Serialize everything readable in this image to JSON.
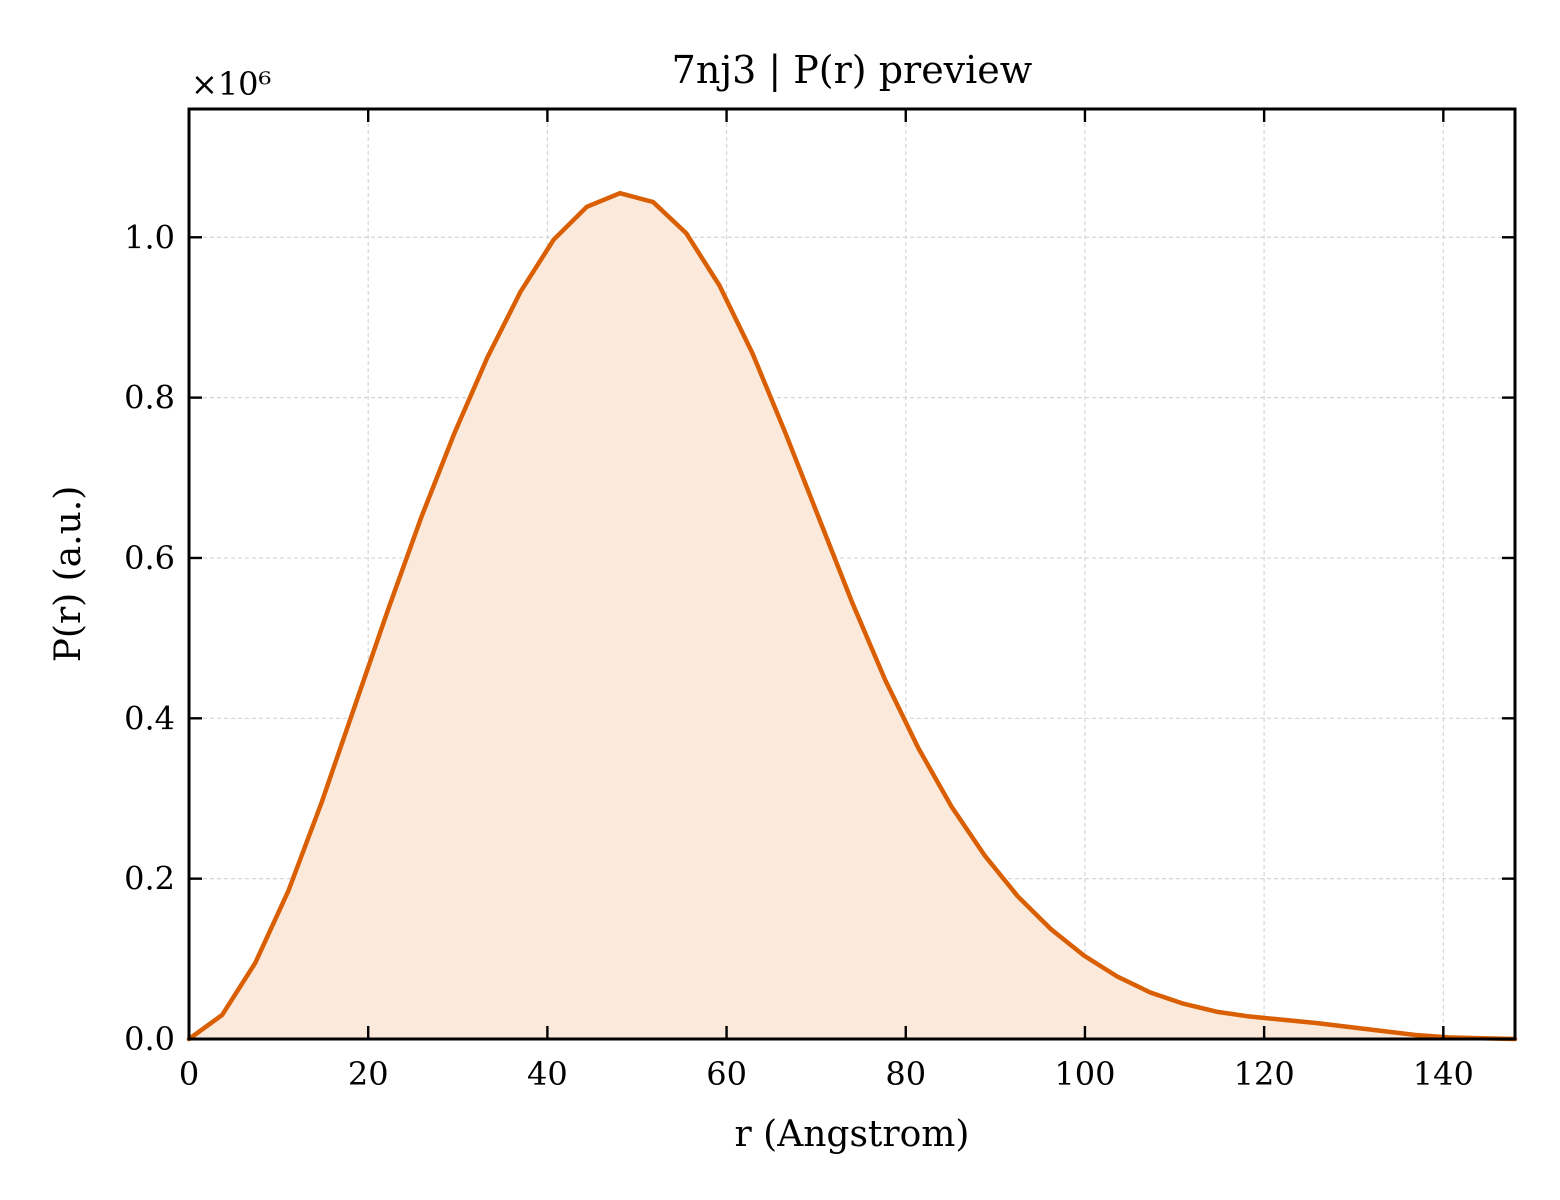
{
  "chart_data": {
    "type": "area",
    "title": "7nj3 | P(r) preview",
    "xlabel": "r (Angstrom)",
    "ylabel": "P(r) (a.u.)",
    "y_multiplier_label": "×10⁶",
    "xlim": [
      0,
      148
    ],
    "ylim": [
      0,
      1.16
    ],
    "xticks": [
      0,
      20,
      40,
      60,
      80,
      100,
      120,
      140
    ],
    "xtick_labels": [
      "0",
      "20",
      "40",
      "60",
      "80",
      "100",
      "120",
      "140"
    ],
    "yticks": [
      0.0,
      0.2,
      0.4,
      0.6,
      0.8,
      1.0
    ],
    "ytick_labels": [
      "0.0",
      "0.2",
      "0.4",
      "0.6",
      "0.8",
      "1.0"
    ],
    "grid": true,
    "series": [
      {
        "color": "#d95f02",
        "fill_color": "#fbe9dc",
        "x": [
          0,
          3.7,
          7.4,
          11.1,
          14.8,
          18.5,
          22.2,
          25.9,
          29.6,
          33.3,
          37.0,
          40.7,
          44.4,
          48.1,
          51.8,
          55.5,
          59.2,
          62.9,
          66.6,
          70.3,
          74.0,
          77.7,
          81.4,
          85.1,
          88.8,
          92.5,
          96.2,
          99.9,
          103.6,
          107.3,
          111.0,
          114.7,
          118.4,
          122.1,
          125.8,
          129.5,
          133.2,
          136.9,
          140.6,
          144.3,
          148.0
        ],
        "values": [
          0.0,
          0.03,
          0.095,
          0.185,
          0.295,
          0.415,
          0.535,
          0.65,
          0.755,
          0.85,
          0.932,
          0.997,
          1.038,
          1.055,
          1.044,
          1.005,
          0.94,
          0.855,
          0.755,
          0.65,
          0.545,
          0.448,
          0.363,
          0.29,
          0.229,
          0.178,
          0.137,
          0.104,
          0.078,
          0.058,
          0.044,
          0.034,
          0.028,
          0.024,
          0.02,
          0.015,
          0.01,
          0.005,
          0.002,
          0.001,
          0.0
        ]
      }
    ]
  }
}
